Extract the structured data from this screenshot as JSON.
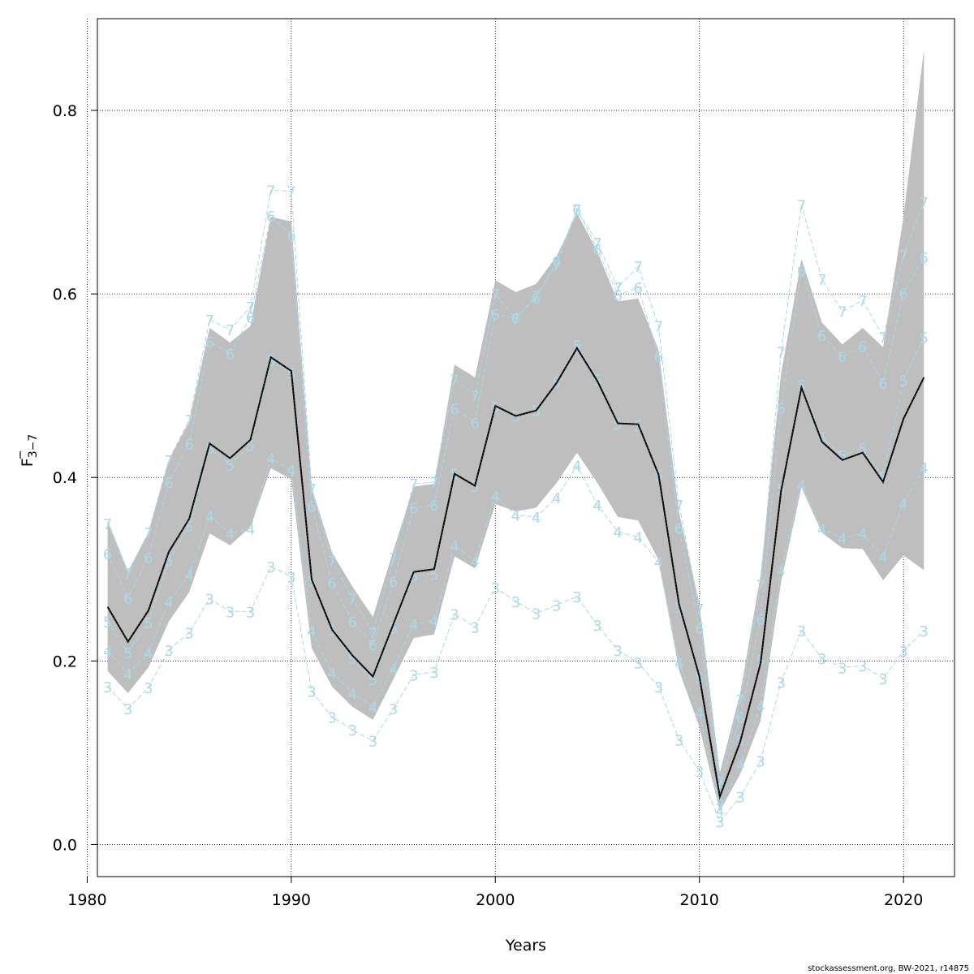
{
  "chart_data": {
    "type": "line",
    "title": "",
    "xlabel": "Years",
    "ylabel_main": "F",
    "ylabel_sub": "3−7",
    "xlim": [
      1980.5,
      2022.5
    ],
    "ylim": [
      -0.035,
      0.9
    ],
    "xticks": [
      1980,
      1990,
      2000,
      2010,
      2020
    ],
    "yticks": [
      0.0,
      0.2,
      0.4,
      0.6,
      0.8
    ],
    "ytick_labels": [
      "0.0",
      "0.2",
      "0.4",
      "0.6",
      "0.8"
    ],
    "grid": true,
    "years": [
      1981,
      1982,
      1983,
      1984,
      1985,
      1986,
      1987,
      1988,
      1989,
      1990,
      1991,
      1992,
      1993,
      1994,
      1995,
      1996,
      1997,
      1998,
      1999,
      2000,
      2001,
      2002,
      2003,
      2004,
      2005,
      2006,
      2007,
      2008,
      2009,
      2010,
      2011,
      2012,
      2013,
      2014,
      2015,
      2016,
      2017,
      2018,
      2019,
      2020,
      2021
    ],
    "estimate": [
      0.259,
      0.221,
      0.255,
      0.319,
      0.355,
      0.437,
      0.421,
      0.441,
      0.531,
      0.516,
      0.289,
      0.234,
      0.206,
      0.183,
      0.24,
      0.297,
      0.3,
      0.404,
      0.391,
      0.478,
      0.467,
      0.473,
      0.503,
      0.541,
      0.505,
      0.459,
      0.458,
      0.403,
      0.262,
      0.183,
      0.052,
      0.112,
      0.198,
      0.385,
      0.498,
      0.439,
      0.419,
      0.427,
      0.395,
      0.464,
      0.509
    ],
    "lower": [
      0.189,
      0.165,
      0.193,
      0.243,
      0.275,
      0.339,
      0.326,
      0.346,
      0.41,
      0.398,
      0.214,
      0.172,
      0.15,
      0.136,
      0.18,
      0.225,
      0.229,
      0.314,
      0.301,
      0.371,
      0.363,
      0.367,
      0.394,
      0.427,
      0.394,
      0.357,
      0.353,
      0.31,
      0.19,
      0.128,
      0.036,
      0.077,
      0.135,
      0.286,
      0.389,
      0.34,
      0.323,
      0.322,
      0.288,
      0.315,
      0.299
    ],
    "upper": [
      0.353,
      0.298,
      0.34,
      0.419,
      0.461,
      0.563,
      0.547,
      0.565,
      0.684,
      0.679,
      0.389,
      0.318,
      0.281,
      0.248,
      0.32,
      0.39,
      0.393,
      0.523,
      0.509,
      0.615,
      0.602,
      0.611,
      0.641,
      0.688,
      0.646,
      0.592,
      0.595,
      0.539,
      0.362,
      0.262,
      0.078,
      0.165,
      0.294,
      0.513,
      0.638,
      0.569,
      0.545,
      0.563,
      0.542,
      0.684,
      0.866
    ],
    "bands": [
      {
        "name": "3",
        "values": [
          0.172,
          0.148,
          0.171,
          0.212,
          0.231,
          0.268,
          0.254,
          0.254,
          0.303,
          0.292,
          0.167,
          0.139,
          0.125,
          0.113,
          0.148,
          0.185,
          0.188,
          0.251,
          0.237,
          0.28,
          0.265,
          0.252,
          0.261,
          0.27,
          0.239,
          0.212,
          0.198,
          0.172,
          0.114,
          0.08,
          0.025,
          0.052,
          0.091,
          0.177,
          0.233,
          0.203,
          0.193,
          0.195,
          0.181,
          0.211,
          0.233
        ]
      },
      {
        "name": "4",
        "values": [
          0.211,
          0.186,
          0.209,
          0.265,
          0.294,
          0.358,
          0.339,
          0.344,
          0.421,
          0.408,
          0.233,
          0.187,
          0.165,
          0.15,
          0.192,
          0.24,
          0.244,
          0.326,
          0.309,
          0.38,
          0.359,
          0.357,
          0.378,
          0.413,
          0.37,
          0.341,
          0.335,
          0.308,
          0.198,
          0.144,
          0.037,
          0.087,
          0.151,
          0.299,
          0.392,
          0.344,
          0.334,
          0.339,
          0.314,
          0.372,
          0.411
        ]
      },
      {
        "name": "5",
        "values": [
          0.243,
          0.209,
          0.242,
          0.31,
          0.347,
          0.432,
          0.414,
          0.435,
          0.528,
          0.514,
          0.288,
          0.234,
          0.203,
          0.18,
          0.236,
          0.293,
          0.295,
          0.404,
          0.391,
          0.477,
          0.467,
          0.473,
          0.504,
          0.544,
          0.507,
          0.459,
          0.457,
          0.403,
          0.259,
          0.182,
          0.049,
          0.114,
          0.201,
          0.388,
          0.501,
          0.444,
          0.424,
          0.432,
          0.401,
          0.506,
          0.553
        ]
      },
      {
        "name": "6",
        "values": [
          0.317,
          0.269,
          0.313,
          0.395,
          0.437,
          0.548,
          0.535,
          0.575,
          0.685,
          0.664,
          0.369,
          0.285,
          0.243,
          0.218,
          0.287,
          0.367,
          0.37,
          0.475,
          0.46,
          0.578,
          0.574,
          0.596,
          0.636,
          0.692,
          0.649,
          0.599,
          0.607,
          0.532,
          0.345,
          0.236,
          0.062,
          0.139,
          0.246,
          0.476,
          0.626,
          0.555,
          0.532,
          0.543,
          0.503,
          0.601,
          0.64
        ]
      },
      {
        "name": "7",
        "values": [
          0.35,
          0.296,
          0.34,
          0.419,
          0.463,
          0.572,
          0.561,
          0.586,
          0.713,
          0.712,
          0.388,
          0.309,
          0.268,
          0.231,
          0.312,
          0.393,
          0.395,
          0.507,
          0.489,
          0.6,
          0.573,
          0.598,
          0.632,
          0.692,
          0.656,
          0.607,
          0.63,
          0.565,
          0.37,
          0.257,
          0.068,
          0.158,
          0.283,
          0.537,
          0.697,
          0.616,
          0.581,
          0.593,
          0.553,
          0.642,
          0.7
        ]
      }
    ],
    "credit": "stockassessment.org, BW-2021, r14875"
  },
  "colors": {
    "band_fill": "#bebebe",
    "estimate": "#000000",
    "age_labels": "#add8e6",
    "grid": "#000000"
  }
}
